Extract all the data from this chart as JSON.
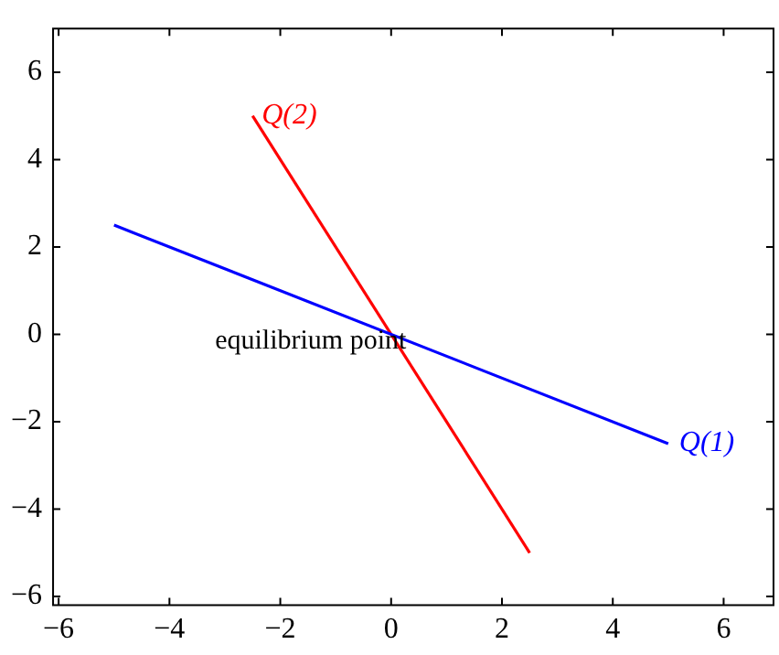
{
  "chart_data": {
    "type": "line",
    "series": [
      {
        "name": "Q(1)",
        "color": "#0000ff",
        "x": [
          -5,
          5
        ],
        "values": [
          2.5,
          -2.5
        ]
      },
      {
        "name": "Q(2)",
        "color": "#ff0000",
        "x": [
          -2.5,
          2.5
        ],
        "values": [
          5,
          -5
        ]
      }
    ],
    "xlim": [
      -6.1,
      6.9
    ],
    "ylim": [
      -6.2,
      7
    ],
    "xticks": [
      -6,
      -4,
      -2,
      0,
      2,
      4,
      6
    ],
    "yticks": [
      -6,
      -4,
      -2,
      0,
      2,
      4,
      6
    ],
    "annotations": [
      {
        "text": "equilibrium point",
        "x": 0,
        "y": 0
      }
    ],
    "grid": false,
    "legend": false,
    "marker": "none",
    "line_style": "solid"
  }
}
